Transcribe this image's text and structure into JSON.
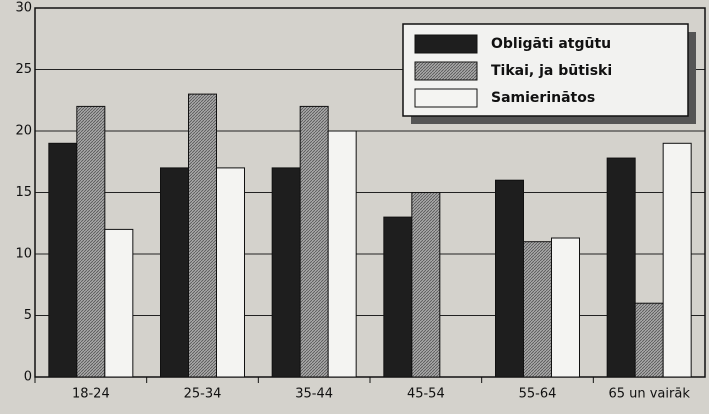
{
  "chart_data": {
    "type": "bar",
    "categories": [
      "18-24",
      "25-34",
      "35-44",
      "45-54",
      "55-64",
      "65 un vairāk"
    ],
    "series": [
      {
        "name": "Obligāti atgūtu",
        "color": "#1e1e1e",
        "values": [
          19,
          17,
          17,
          13,
          16,
          17.8
        ]
      },
      {
        "name": "Tikai, ja būtiski",
        "color": "#9a9a9a",
        "values": [
          22,
          23,
          22,
          15,
          11,
          6
        ]
      },
      {
        "name": "Samierinātos",
        "color": "#f4f4f2",
        "values": [
          12,
          17,
          20,
          null,
          11.3,
          19
        ]
      }
    ],
    "ylim": [
      0,
      30
    ],
    "yticks": [
      0,
      5,
      10,
      15,
      20,
      25,
      30
    ],
    "grid": true,
    "legend": "top-right"
  }
}
